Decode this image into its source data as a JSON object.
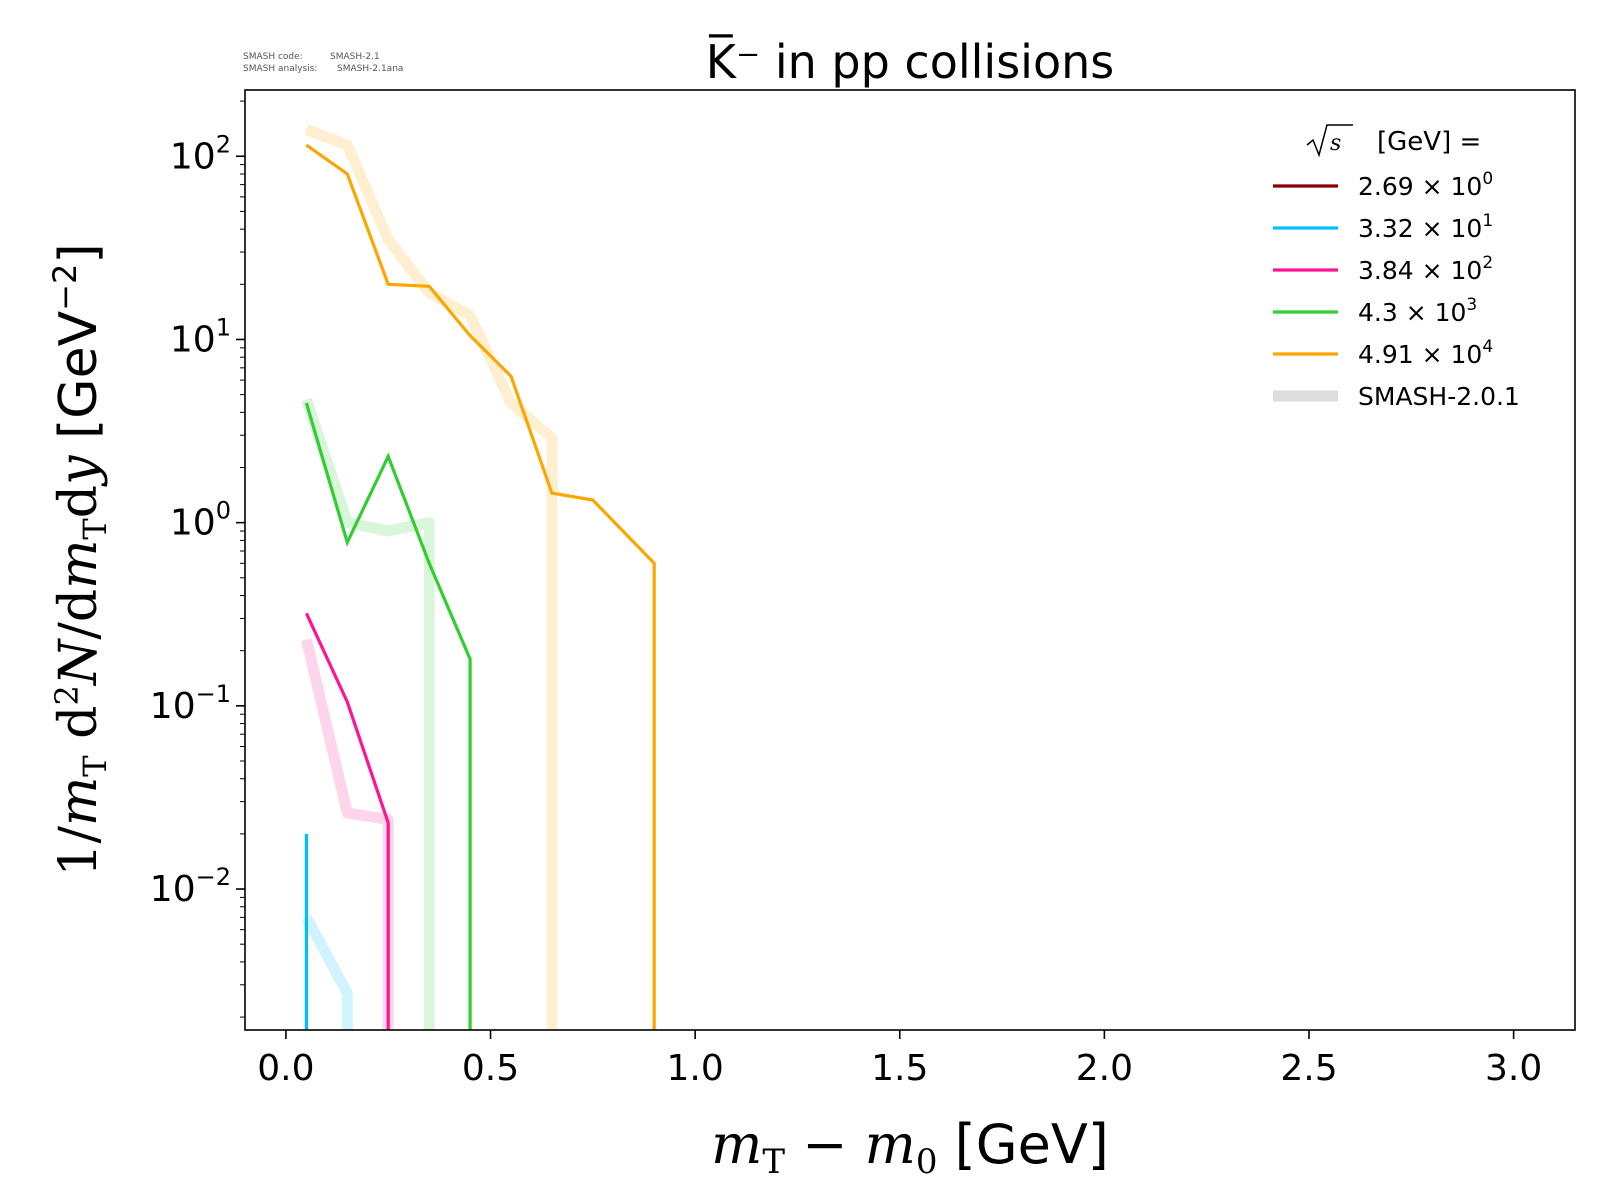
{
  "header": {
    "code_label": "SMASH code:",
    "code_version": "SMASH-2.1",
    "analysis_label": "SMASH analysis:",
    "analysis_version": "SMASH-2.1ana"
  },
  "chart_data": {
    "type": "line",
    "title": "K̅⁻ in pp collisions",
    "xlabel": "m_T − m_0 [GeV]",
    "ylabel": "1/m_T d²N/dm_T dy [GeV⁻²]",
    "xscale": "linear",
    "yscale": "log",
    "xlim": [
      -0.1,
      3.15
    ],
    "ylim": [
      0.0017,
      230
    ],
    "x_ticks": [
      0.0,
      0.5,
      1.0,
      1.5,
      2.0,
      2.5,
      3.0
    ],
    "x_tick_labels": [
      "0.0",
      "0.5",
      "1.0",
      "1.5",
      "2.0",
      "2.5",
      "3.0"
    ],
    "y_ticks": [
      {
        "mantissa": "10",
        "exp": "2",
        "value": 100
      },
      {
        "mantissa": "10",
        "exp": "1",
        "value": 10
      },
      {
        "mantissa": "10",
        "exp": "0",
        "value": 1
      },
      {
        "mantissa": "10",
        "exp": "−1",
        "value": 0.1
      },
      {
        "mantissa": "10",
        "exp": "−2",
        "value": 0.01
      }
    ],
    "grid": false,
    "legend": {
      "position": "top-right",
      "title": "[GeV] =",
      "title_symbol": "√s",
      "entries": [
        {
          "mantissa": "2.69",
          "exp": "0",
          "color": "#8b0000",
          "style": "line"
        },
        {
          "mantissa": "3.32",
          "exp": "1",
          "color": "#00bfff",
          "style": "line"
        },
        {
          "mantissa": "3.84",
          "exp": "2",
          "color": "#ff1493",
          "style": "line"
        },
        {
          "mantissa": "4.3",
          "exp": "3",
          "color": "#32cd32",
          "style": "line"
        },
        {
          "mantissa": "4.91",
          "exp": "4",
          "color": "#ffa500",
          "style": "line"
        },
        {
          "label": "SMASH-2.0.1",
          "color": "#dddddd",
          "style": "band"
        }
      ]
    },
    "series": [
      {
        "color": "#00bfff",
        "version": "current",
        "x": [
          0.05,
          0.05
        ],
        "y": [
          0.02,
          0.0017
        ]
      },
      {
        "color": "#ff1493",
        "version": "current",
        "x": [
          0.05,
          0.15,
          0.25,
          0.25
        ],
        "y": [
          0.32,
          0.105,
          0.023,
          0.0017
        ]
      },
      {
        "color": "#32cd32",
        "version": "current",
        "x": [
          0.05,
          0.15,
          0.25,
          0.35,
          0.45,
          0.45
        ],
        "y": [
          4.5,
          0.78,
          2.3,
          0.6,
          0.18,
          0.0017
        ]
      },
      {
        "color": "#ffa500",
        "version": "current",
        "x": [
          0.05,
          0.15,
          0.25,
          0.35,
          0.45,
          0.55,
          0.65,
          0.75,
          0.9,
          0.9
        ],
        "y": [
          115,
          80,
          20,
          19.5,
          10.5,
          6.3,
          1.45,
          1.33,
          0.6,
          0.0017
        ]
      },
      {
        "color": "#00bfff",
        "version": "SMASH-2.0.1",
        "x": [
          0.05,
          0.15,
          0.15
        ],
        "y": [
          0.007,
          0.0027,
          0.0017
        ]
      },
      {
        "color": "#ff1493",
        "version": "SMASH-2.0.1",
        "x": [
          0.05,
          0.15,
          0.25,
          0.25
        ],
        "y": [
          0.23,
          0.026,
          0.024,
          0.0017
        ]
      },
      {
        "color": "#32cd32",
        "version": "SMASH-2.0.1",
        "x": [
          0.05,
          0.15,
          0.25,
          0.35,
          0.35
        ],
        "y": [
          4.7,
          1.0,
          0.9,
          1.0,
          0.0017
        ]
      },
      {
        "color": "#ffa500",
        "version": "SMASH-2.0.1",
        "x": [
          0.05,
          0.15,
          0.25,
          0.35,
          0.45,
          0.55,
          0.65,
          0.65
        ],
        "y": [
          140,
          115,
          35,
          18,
          13.5,
          4.5,
          2.9,
          0.0017
        ]
      }
    ]
  }
}
